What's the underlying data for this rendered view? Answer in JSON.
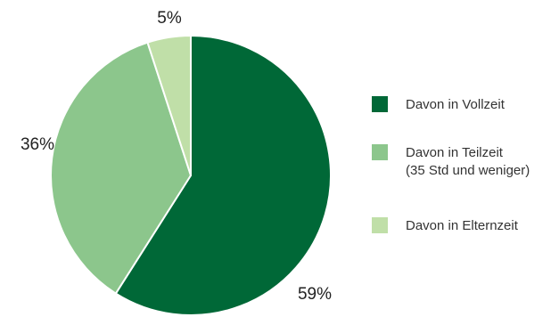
{
  "chart_data": {
    "type": "pie",
    "title": "",
    "slices": [
      {
        "label": "Davon in Vollzeit",
        "value": 59,
        "display": "59%",
        "color": "#006837"
      },
      {
        "label": "Davon in Teilzeit (35 Std und weniger)",
        "value": 36,
        "display": "36%",
        "color": "#8cc68c"
      },
      {
        "label": "Davon in Elternzeit",
        "value": 5,
        "display": "5%",
        "color": "#c0dfa8"
      }
    ],
    "legend": {
      "placement": "right",
      "entries": [
        {
          "lines": [
            "Davon in Vollzeit"
          ],
          "color": "#006837"
        },
        {
          "lines": [
            "Davon in Teilzeit",
            "(35 Std und weniger)"
          ],
          "color": "#8cc68c"
        },
        {
          "lines": [
            "Davon in Elternzeit"
          ],
          "color": "#c0dfa8"
        }
      ]
    }
  }
}
